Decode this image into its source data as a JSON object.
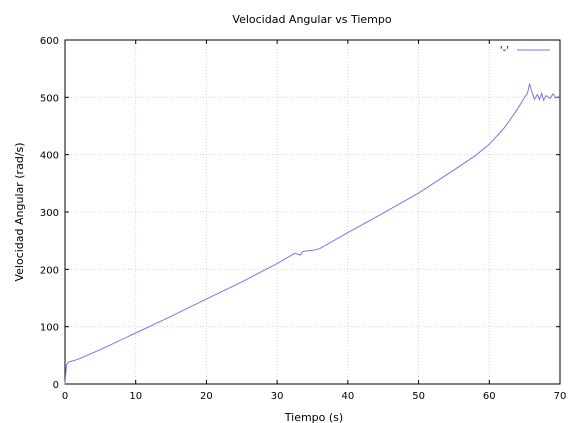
{
  "chart_data": {
    "type": "line",
    "title": "Velocidad Angular vs Tiempo",
    "xlabel": "Tiempo (s)",
    "ylabel": "Velocidad Angular (rad/s)",
    "xlim": [
      0,
      70
    ],
    "ylim": [
      0,
      600
    ],
    "x_ticks": [
      "0",
      "10",
      "20",
      "30",
      "40",
      "50",
      "60",
      "70"
    ],
    "y_ticks": [
      "0",
      "100",
      "200",
      "300",
      "400",
      "500",
      "600"
    ],
    "grid": true,
    "legend_position": "top-right",
    "series": [
      {
        "name": "'-'",
        "color": "#7777ee",
        "x": [
          0,
          0.2,
          0.5,
          1,
          2,
          5,
          10,
          15,
          20,
          25,
          30,
          32.5,
          33,
          33.3,
          33.6,
          34,
          35,
          36,
          40,
          45,
          50,
          55,
          58,
          60,
          62,
          63,
          64,
          65,
          65.4,
          65.7,
          66,
          66.4,
          66.8,
          67.1,
          67.4,
          67.7,
          68,
          68.3,
          68.6,
          69,
          69.4,
          69.7,
          70
        ],
        "y": [
          0,
          33,
          38,
          40,
          44,
          60,
          89,
          118,
          148,
          178,
          210,
          228,
          226,
          225,
          231,
          232,
          233,
          236,
          264,
          298,
          333,
          373,
          398,
          418,
          445,
          462,
          480,
          500,
          507,
          524,
          510,
          497,
          505,
          496,
          507,
          495,
          503,
          501,
          498,
          506,
          499,
          501,
          500
        ]
      }
    ]
  }
}
